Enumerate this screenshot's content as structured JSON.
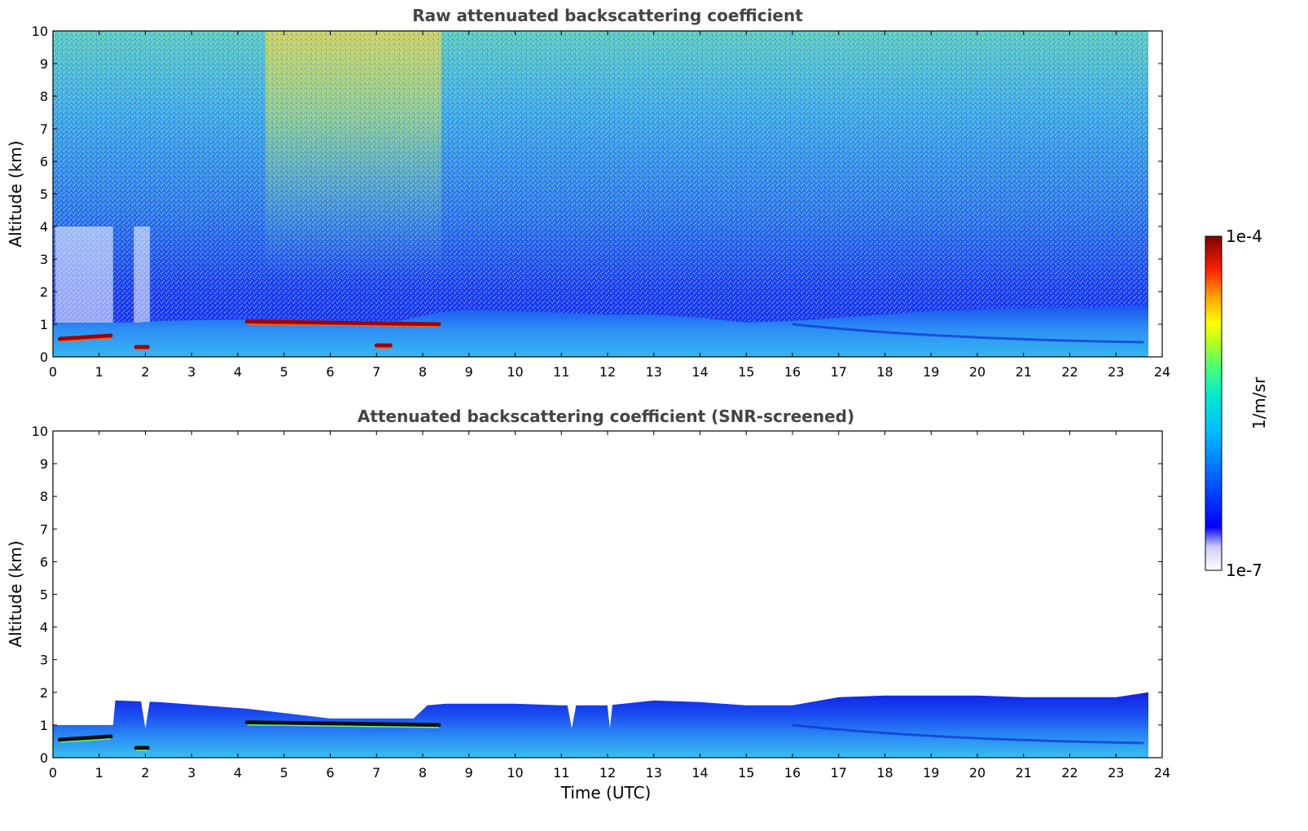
{
  "colors": {
    "background": "#ffffff",
    "title_text": "#444444",
    "axis": "#000000",
    "colormap": [
      "#ffffff",
      "#0000ff",
      "#00a0ff",
      "#00e0e0",
      "#40ff80",
      "#c0ff00",
      "#ffff00",
      "#ff8000",
      "#ff0000",
      "#800000"
    ]
  },
  "colorbar": {
    "max_label": "1e-4",
    "min_label": "1e-7",
    "unit_label": "1/m/sr",
    "scale": "log",
    "range": [
      1e-07,
      0.0001
    ]
  },
  "chart_data": [
    {
      "type": "heatmap",
      "title": "Raw attenuated backscattering coefficient",
      "xlabel": "",
      "ylabel": "Altitude (km)",
      "xlim": [
        0,
        24
      ],
      "ylim": [
        0,
        10
      ],
      "xticks": [
        "0",
        "1",
        "2",
        "3",
        "4",
        "5",
        "6",
        "7",
        "8",
        "9",
        "10",
        "11",
        "12",
        "13",
        "14",
        "15",
        "16",
        "17",
        "18",
        "19",
        "20",
        "21",
        "22",
        "23",
        "24"
      ],
      "yticks": [
        "0",
        "1",
        "2",
        "3",
        "4",
        "5",
        "6",
        "7",
        "8",
        "9",
        "10"
      ],
      "data_end_time": 23.7,
      "boundary_layer_top_km": {
        "time": [
          0,
          1.3,
          1.8,
          2.3,
          4.2,
          6,
          7.5,
          8.3,
          9,
          10,
          11,
          12,
          13,
          14,
          15,
          16,
          17,
          18,
          19,
          20,
          21,
          22,
          23,
          23.7
        ],
        "height": [
          1.05,
          1.05,
          1.05,
          1.1,
          1.15,
          1.1,
          1.1,
          1.35,
          1.45,
          1.4,
          1.35,
          1.3,
          1.3,
          1.2,
          1.05,
          1.1,
          1.2,
          1.3,
          1.4,
          1.45,
          1.5,
          1.5,
          1.55,
          1.6
        ]
      },
      "cloud_layers_km": [
        {
          "t0": 0.15,
          "t1": 1.25,
          "h0": 0.55,
          "h1": 0.65
        },
        {
          "t0": 1.8,
          "t1": 2.05,
          "h0": 0.3,
          "h1": 0.3
        },
        {
          "t0": 4.2,
          "t1": 8.35,
          "h0": 1.08,
          "h1": 1.0
        },
        {
          "t0": 7.0,
          "t1": 7.3,
          "h0": 0.35,
          "h1": 0.35
        }
      ],
      "aerosol_plume_hours": [
        4.6,
        8.4
      ],
      "noise_increase_with_altitude": true
    },
    {
      "type": "heatmap",
      "title": "Attenuated backscattering coefficient (SNR-screened)",
      "xlabel": "Time (UTC)",
      "ylabel": "Altitude (km)",
      "xlim": [
        0,
        24
      ],
      "ylim": [
        0,
        10
      ],
      "xticks": [
        "0",
        "1",
        "2",
        "3",
        "4",
        "5",
        "6",
        "7",
        "8",
        "9",
        "10",
        "11",
        "12",
        "13",
        "14",
        "15",
        "16",
        "17",
        "18",
        "19",
        "20",
        "21",
        "22",
        "23",
        "24"
      ],
      "yticks": [
        "0",
        "1",
        "2",
        "3",
        "4",
        "5",
        "6",
        "7",
        "8",
        "9",
        "10"
      ],
      "data_end_time": 23.7,
      "layer_top_km": {
        "time": [
          0,
          1.3,
          1.35,
          2.3,
          4.2,
          6,
          7.8,
          8.1,
          8.5,
          10,
          11,
          12,
          13,
          14,
          15,
          16,
          17,
          18,
          19,
          20,
          21,
          22,
          23,
          23.7
        ],
        "height": [
          1.0,
          1.0,
          1.75,
          1.7,
          1.5,
          1.2,
          1.2,
          1.6,
          1.65,
          1.65,
          1.6,
          1.6,
          1.75,
          1.7,
          1.6,
          1.6,
          1.85,
          1.9,
          1.9,
          1.9,
          1.85,
          1.85,
          1.85,
          2.0
        ]
      },
      "cloud_layers_km": [
        {
          "t0": 0.15,
          "t1": 1.25,
          "h0": 0.55,
          "h1": 0.65
        },
        {
          "t0": 1.8,
          "t1": 2.05,
          "h0": 0.3,
          "h1": 0.3
        },
        {
          "t0": 4.2,
          "t1": 8.35,
          "h0": 1.08,
          "h1": 1.0
        }
      ],
      "above_layer": "masked (white)"
    }
  ]
}
